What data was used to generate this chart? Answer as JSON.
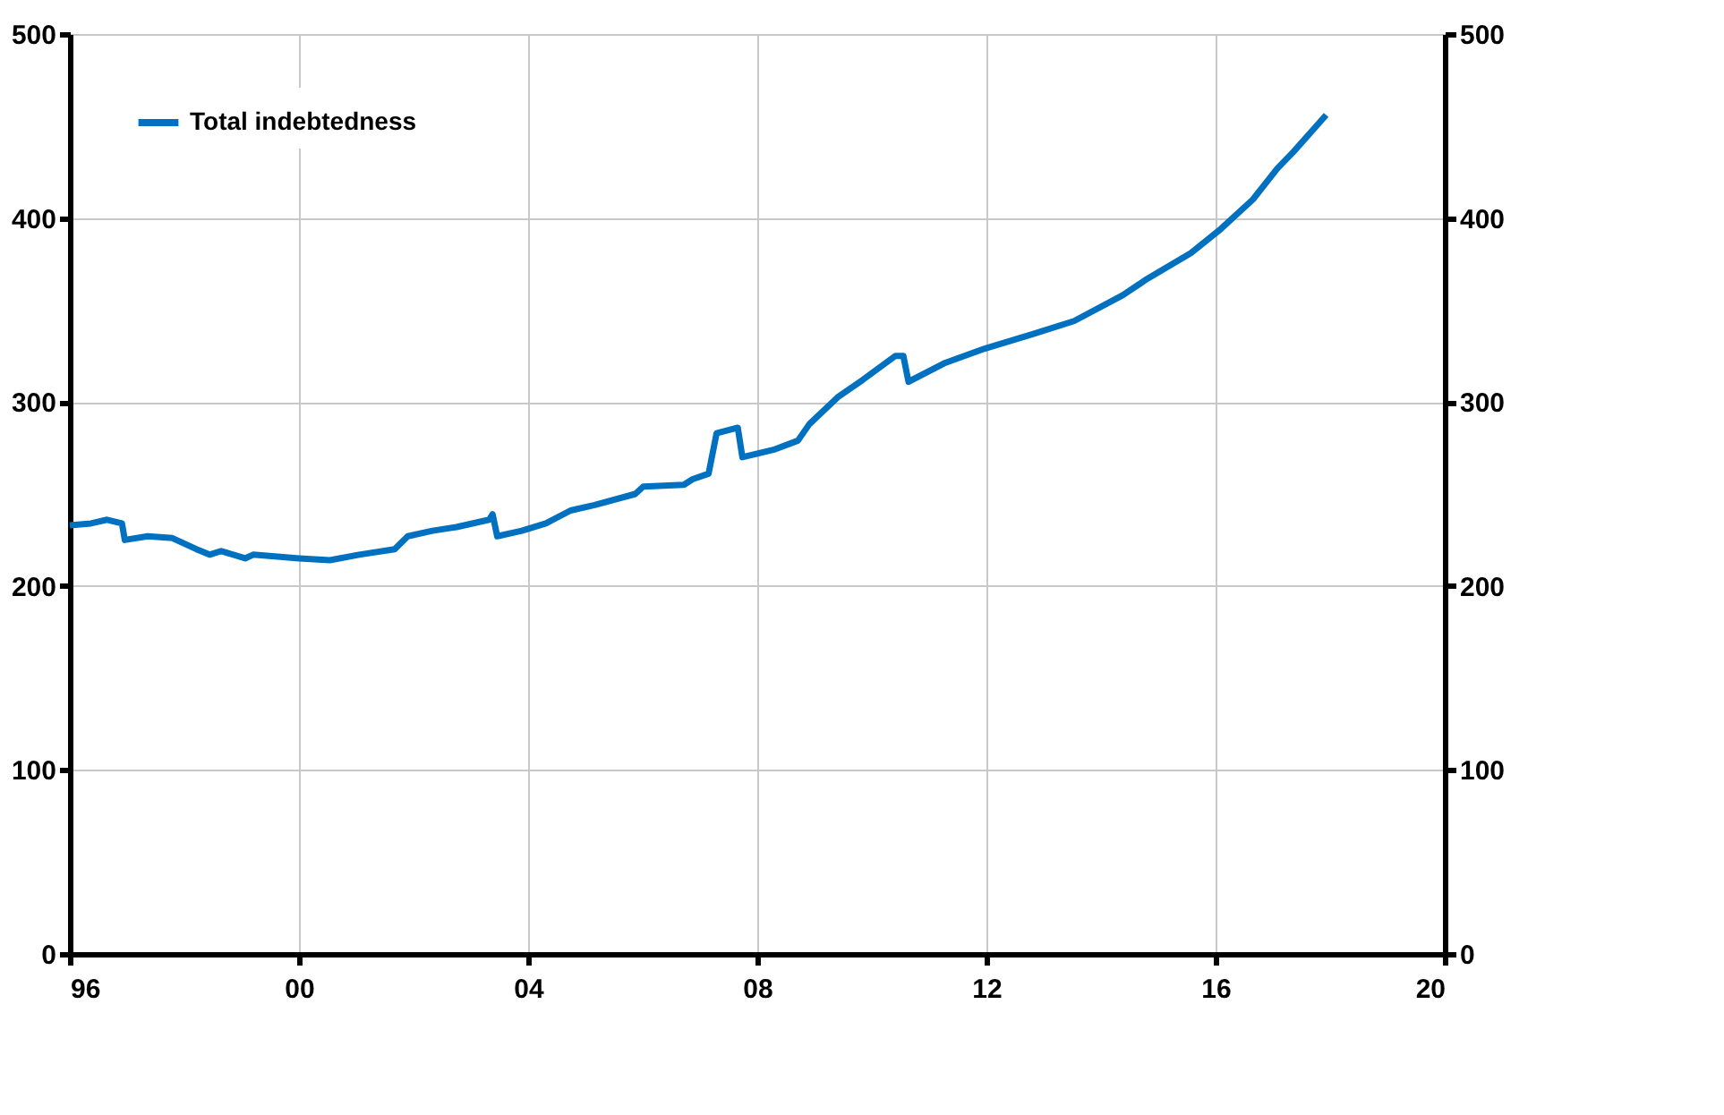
{
  "chart_data": {
    "type": "line",
    "series": [
      {
        "name": "Total indebtedness",
        "color": "#0070c0",
        "x": [
          1996.0,
          1996.37,
          1996.65,
          1996.91,
          1996.96,
          1997.36,
          1997.79,
          1998.21,
          1998.44,
          1998.64,
          1999.06,
          1999.2,
          2000.0,
          2000.54,
          2001.05,
          2001.67,
          2001.9,
          2002.33,
          2002.75,
          2003.32,
          2003.38,
          2003.46,
          2003.89,
          2004.31,
          2004.74,
          2005.16,
          2005.87,
          2006.01,
          2006.72,
          2006.87,
          2007.15,
          2007.29,
          2007.66,
          2007.74,
          2008.28,
          2008.71,
          2008.91,
          2009.42,
          2009.84,
          2010.41,
          2010.55,
          2010.64,
          2011.26,
          2011.97,
          2012.82,
          2013.53,
          2014.38,
          2014.81,
          2015.57,
          2016.09,
          2016.65,
          2017.08,
          2017.36,
          2017.93
        ],
        "values": [
          233,
          234,
          236,
          234,
          225,
          227,
          226,
          220,
          217,
          219,
          215,
          217,
          215,
          214,
          217,
          220,
          227,
          230,
          232,
          236,
          239,
          227,
          230,
          234,
          241,
          244,
          250,
          254,
          255,
          258,
          261,
          283,
          286,
          270,
          274,
          279,
          288,
          303,
          312,
          325,
          325,
          311,
          321,
          329,
          337,
          344,
          358,
          367,
          381,
          394,
          410,
          427,
          436,
          456
        ]
      }
    ],
    "xlim": [
      1996,
      2020
    ],
    "xticks": [
      {
        "value": 1996,
        "label": "96"
      },
      {
        "value": 2000,
        "label": "00"
      },
      {
        "value": 2004,
        "label": "04"
      },
      {
        "value": 2008,
        "label": "08"
      },
      {
        "value": 2012,
        "label": "12"
      },
      {
        "value": 2016,
        "label": "16"
      },
      {
        "value": 2020,
        "label": "20"
      }
    ],
    "ylim": [
      0,
      500
    ],
    "yticks": [
      0,
      100,
      200,
      300,
      400,
      500
    ],
    "y2lim": [
      0,
      500
    ],
    "y2ticks": [
      0,
      100,
      200,
      300,
      400,
      500
    ],
    "grid": true,
    "legend": "top left",
    "line_style": "solid",
    "marker": "none"
  }
}
